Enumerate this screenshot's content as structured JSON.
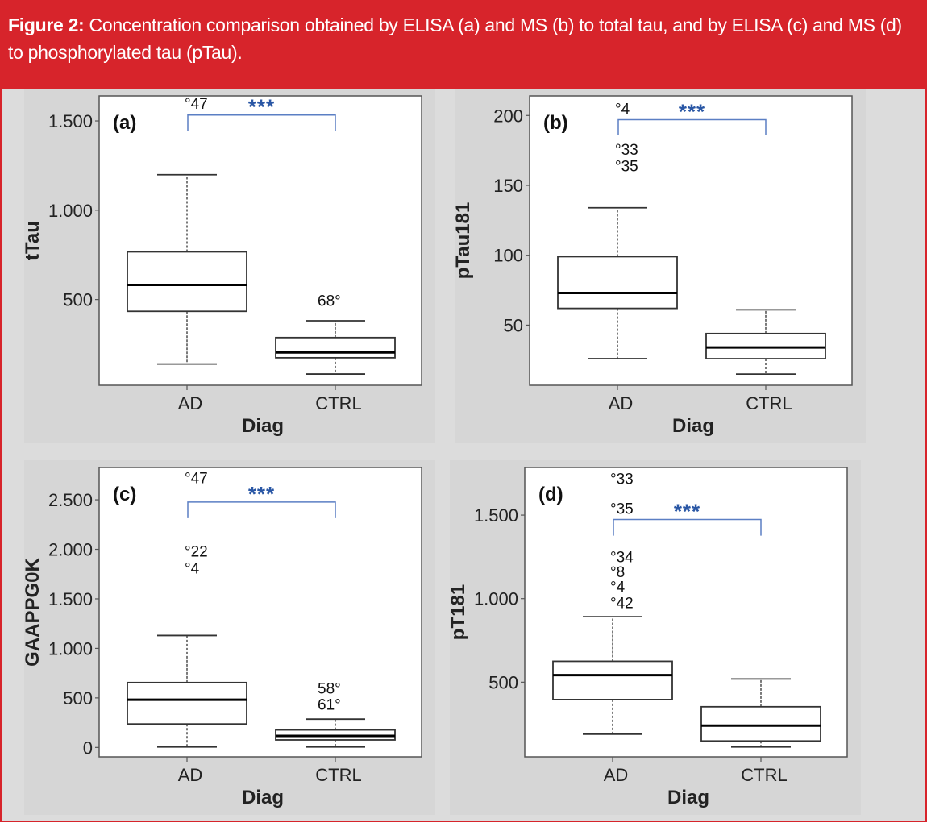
{
  "header": {
    "figure_label": "Figure 2:",
    "caption": " Concentration comparison obtained by ELISA (a) and MS (b) to total tau, and by ELISA (c) and MS (d) to phosphorylated tau (pTau)."
  },
  "colors": {
    "header_red": "#d7242b",
    "significance_blue": "#2a57a5",
    "bracket_blue": "#5b7fc4",
    "panel_bg": "#dcdcdc"
  },
  "chart_data": [
    {
      "type": "box",
      "panel_label": "(a)",
      "ylabel": "tTau",
      "xlabel": "Diag",
      "categories": [
        "AD",
        "CTRL"
      ],
      "ylim": [
        20,
        1640
      ],
      "yticks": [
        500,
        1000,
        1500
      ],
      "ytick_labels": [
        "500",
        "1.000",
        "1.500"
      ],
      "groups": [
        {
          "name": "AD",
          "whisker_low": 139,
          "q1": 434,
          "median": 582,
          "q3": 767,
          "whisker_high": 1199,
          "outliers": [
            {
              "label": "°47",
              "value": 1600
            }
          ]
        },
        {
          "name": "CTRL",
          "whisker_low": 83,
          "q1": 174,
          "median": 204,
          "q3": 287,
          "whisker_high": 381,
          "outliers": [
            {
              "label": "68°",
              "value": 495
            }
          ]
        }
      ],
      "significance": {
        "label": "***",
        "top": 1533,
        "bottom": 1443
      }
    },
    {
      "type": "box",
      "panel_label": "(b)",
      "ylabel": "pTau181",
      "xlabel": "Diag",
      "categories": [
        "AD",
        "CTRL"
      ],
      "ylim": [
        7,
        214
      ],
      "yticks": [
        50,
        100,
        150,
        200
      ],
      "ytick_labels": [
        "50",
        "100",
        "150",
        "200"
      ],
      "groups": [
        {
          "name": "AD",
          "whisker_low": 26,
          "q1": 62,
          "median": 73,
          "q3": 99,
          "whisker_high": 134,
          "outliers": [
            {
              "label": "°4",
              "value": 205
            },
            {
              "label": "°33",
              "value": 176
            },
            {
              "label": "°35",
              "value": 164
            }
          ]
        },
        {
          "name": "CTRL",
          "whisker_low": 15,
          "q1": 26,
          "median": 34,
          "q3": 44,
          "whisker_high": 61,
          "outliers": []
        }
      ],
      "significance": {
        "label": "***",
        "top": 197,
        "bottom": 186
      }
    },
    {
      "type": "box",
      "panel_label": "(c)",
      "ylabel": "GAAPPG0K",
      "xlabel": "Diag",
      "categories": [
        "AD",
        "CTRL"
      ],
      "ylim": [
        -95,
        2826
      ],
      "yticks": [
        0,
        500,
        1000,
        1500,
        2000,
        2500
      ],
      "ytick_labels": [
        "0",
        "500",
        "1.000",
        "1.500",
        "2.000",
        "2.500"
      ],
      "groups": [
        {
          "name": "AD",
          "whisker_low": 5,
          "q1": 237,
          "median": 482,
          "q3": 655,
          "whisker_high": 1130,
          "outliers": [
            {
              "label": "°47",
              "value": 2726
            },
            {
              "label": "°22",
              "value": 1984
            },
            {
              "label": "°4",
              "value": 1815
            }
          ]
        },
        {
          "name": "CTRL",
          "whisker_low": 5,
          "q1": 76,
          "median": 117,
          "q3": 177,
          "whisker_high": 286,
          "outliers": [
            {
              "label": "58°",
              "value": 600
            },
            {
              "label": "61°",
              "value": 436
            }
          ]
        }
      ],
      "significance": {
        "label": "***",
        "top": 2477,
        "bottom": 2314
      }
    },
    {
      "type": "box",
      "panel_label": "(d)",
      "ylabel": "pT181",
      "xlabel": "Diag",
      "categories": [
        "AD",
        "CTRL"
      ],
      "ylim": [
        53,
        1785
      ],
      "yticks": [
        500,
        1000,
        1500
      ],
      "ytick_labels": [
        "500",
        "1.000",
        "1.500"
      ],
      "groups": [
        {
          "name": "AD",
          "whisker_low": 189,
          "q1": 396,
          "median": 542,
          "q3": 625,
          "whisker_high": 892,
          "outliers": [
            {
              "label": "°33",
              "value": 1720
            },
            {
              "label": "°35",
              "value": 1542
            },
            {
              "label": "°34",
              "value": 1251
            },
            {
              "label": "°8",
              "value": 1162
            },
            {
              "label": "°4",
              "value": 1073
            },
            {
              "label": "°42",
              "value": 976
            }
          ]
        },
        {
          "name": "CTRL",
          "whisker_low": 112,
          "q1": 148,
          "median": 240,
          "q3": 353,
          "whisker_high": 519,
          "outliers": []
        }
      ],
      "significance": {
        "label": "***",
        "top": 1474,
        "bottom": 1377
      }
    }
  ]
}
